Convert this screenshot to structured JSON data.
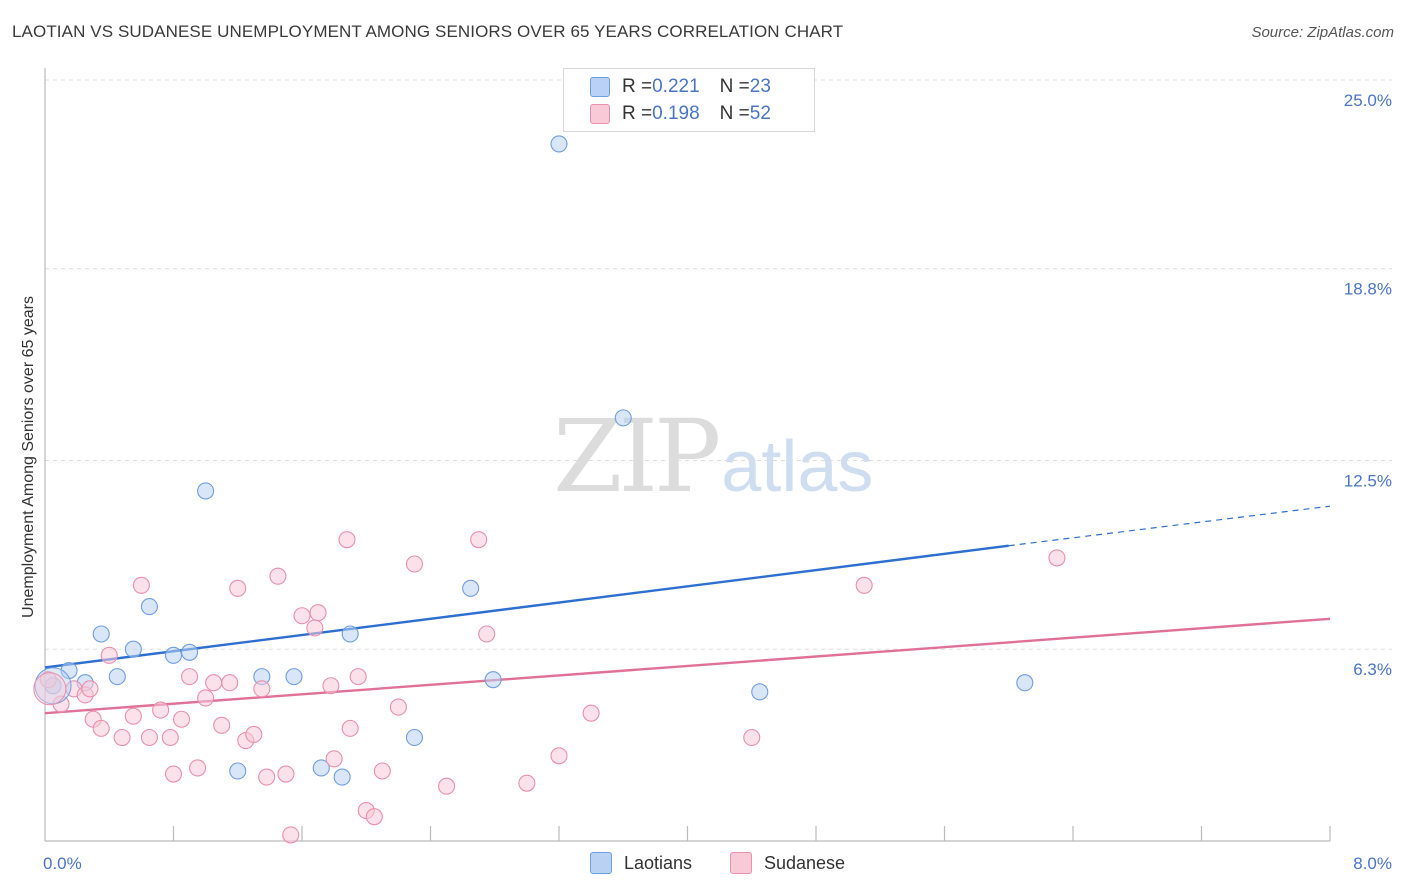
{
  "title": "LAOTIAN VS SUDANESE UNEMPLOYMENT AMONG SENIORS OVER 65 YEARS CORRELATION CHART",
  "source": "Source: ZipAtlas.com",
  "watermark": {
    "zip": "ZIP",
    "atlas": "atlas"
  },
  "legend": {
    "laotians": {
      "r_label": "R = ",
      "r_value": "0.221",
      "n_label": "N = ",
      "n_value": "23"
    },
    "sudanese": {
      "r_label": "R = ",
      "r_value": "0.198",
      "n_label": "N = ",
      "n_value": "52"
    }
  },
  "chart_data": {
    "type": "scatter",
    "title": "LAOTIAN VS SUDANESE UNEMPLOYMENT AMONG SENIORS OVER 65 YEARS CORRELATION CHART",
    "xlabel": "",
    "ylabel": "Unemployment Among Seniors over 65 years",
    "xlim": [
      0,
      8.0
    ],
    "ylim": [
      0,
      25.0
    ],
    "x_tick_labels": [
      "0.0%",
      "8.0%"
    ],
    "y_ticks": [
      6.3,
      12.5,
      18.8,
      25.0
    ],
    "y_tick_labels": [
      "6.3%",
      "12.5%",
      "18.8%",
      "25.0%"
    ],
    "grid": true,
    "legend_position": "top-center",
    "series": [
      {
        "name": "Laotians",
        "color": "#6f9ee0",
        "fill": "#b9d1f2",
        "line_color": "#2d6fd0",
        "trend": {
          "x0": 0,
          "y0": 5.7,
          "x1": 6.0,
          "y1": 9.7,
          "dash_to_x": 8.0,
          "dash_to_y": 11.0
        },
        "points": [
          [
            0.05,
            5.1
          ],
          [
            0.15,
            5.6
          ],
          [
            0.25,
            5.2
          ],
          [
            0.35,
            6.8
          ],
          [
            0.45,
            5.4
          ],
          [
            0.55,
            6.3
          ],
          [
            0.65,
            7.7
          ],
          [
            0.8,
            6.1
          ],
          [
            0.9,
            6.2
          ],
          [
            1.35,
            5.4
          ],
          [
            1.0,
            11.5
          ],
          [
            1.9,
            6.8
          ],
          [
            1.72,
            2.4
          ],
          [
            1.85,
            2.1
          ],
          [
            2.3,
            3.4
          ],
          [
            2.65,
            8.3
          ],
          [
            2.79,
            5.3
          ],
          [
            3.2,
            22.9
          ],
          [
            3.6,
            13.9
          ],
          [
            4.45,
            4.9
          ],
          [
            6.1,
            5.2
          ],
          [
            1.55,
            5.4
          ],
          [
            1.2,
            2.3
          ]
        ]
      },
      {
        "name": "Sudanese",
        "color": "#e890ac",
        "fill": "#f8c9d7",
        "line_color": "#e07098",
        "trend": {
          "x0": 0,
          "y0": 4.2,
          "x1": 8.0,
          "y1": 7.3
        },
        "points": [
          [
            0.02,
            5.3
          ],
          [
            0.1,
            4.5
          ],
          [
            0.18,
            5.0
          ],
          [
            0.25,
            4.8
          ],
          [
            0.3,
            4.0
          ],
          [
            0.35,
            3.7
          ],
          [
            0.4,
            6.1
          ],
          [
            0.48,
            3.4
          ],
          [
            0.55,
            4.1
          ],
          [
            0.6,
            8.4
          ],
          [
            0.65,
            3.4
          ],
          [
            0.72,
            4.3
          ],
          [
            0.78,
            3.4
          ],
          [
            0.8,
            2.2
          ],
          [
            0.85,
            4.0
          ],
          [
            0.9,
            5.4
          ],
          [
            0.95,
            2.4
          ],
          [
            1.0,
            4.7
          ],
          [
            1.05,
            5.2
          ],
          [
            1.1,
            3.8
          ],
          [
            1.15,
            5.2
          ],
          [
            1.2,
            8.3
          ],
          [
            1.25,
            3.3
          ],
          [
            1.3,
            3.5
          ],
          [
            1.35,
            5.0
          ],
          [
            1.38,
            2.1
          ],
          [
            1.45,
            8.7
          ],
          [
            1.5,
            2.2
          ],
          [
            1.53,
            0.2
          ],
          [
            1.6,
            7.4
          ],
          [
            1.68,
            7.0
          ],
          [
            1.7,
            7.5
          ],
          [
            1.8,
            2.7
          ],
          [
            1.88,
            9.9
          ],
          [
            1.9,
            3.7
          ],
          [
            1.95,
            5.4
          ],
          [
            2.0,
            1.0
          ],
          [
            2.05,
            0.8
          ],
          [
            2.1,
            2.3
          ],
          [
            2.2,
            4.4
          ],
          [
            2.3,
            9.1
          ],
          [
            2.5,
            1.8
          ],
          [
            2.7,
            9.9
          ],
          [
            2.75,
            6.8
          ],
          [
            3.0,
            1.9
          ],
          [
            3.2,
            2.8
          ],
          [
            3.4,
            4.2
          ],
          [
            4.4,
            3.4
          ],
          [
            5.1,
            8.4
          ],
          [
            6.3,
            9.3
          ],
          [
            0.28,
            5.0
          ],
          [
            1.78,
            5.1
          ]
        ]
      }
    ]
  }
}
